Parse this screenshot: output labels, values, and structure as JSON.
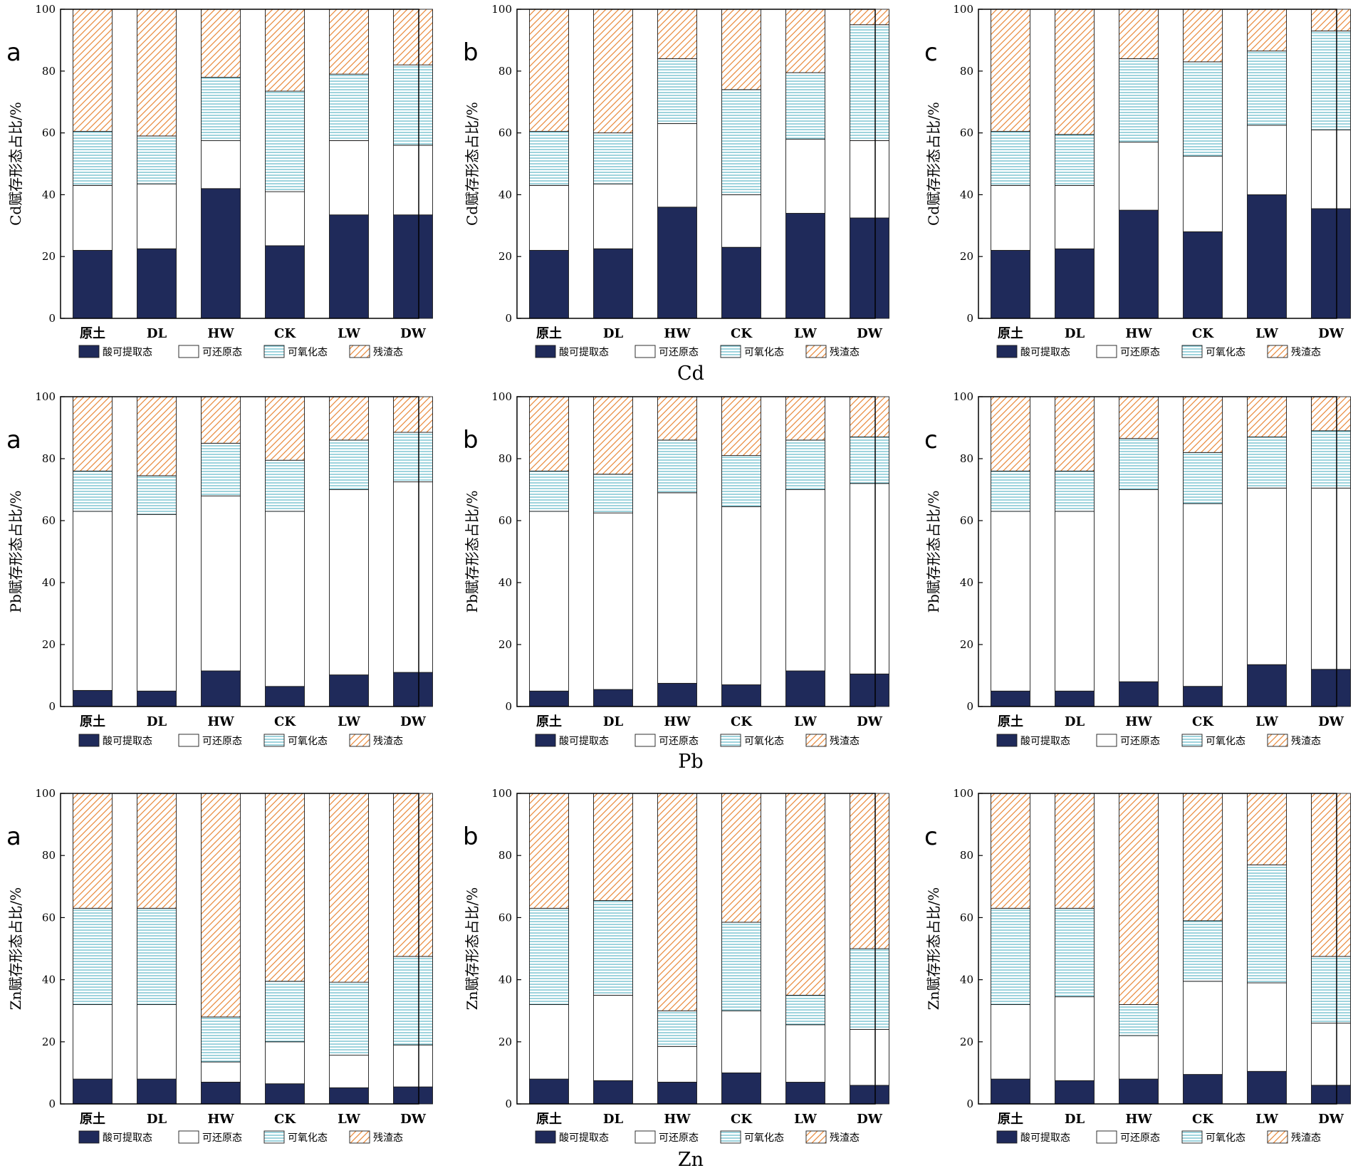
{
  "chart_data": {
    "type": "bar",
    "layout": "3x3 grid of stacked bar charts; each group of three panels followed by a centered element caption",
    "groups": [
      {
        "element": "Cd",
        "panels": [
          {
            "letter": "a",
            "ylabel": "Cd赋存形态占比/%",
            "categories": [
              "原土",
              "DL",
              "HW",
              "CK",
              "LW",
              "DW"
            ],
            "ylim": [
              0,
              100
            ],
            "yticks": [
              "0",
              "20",
              "40",
              "60",
              "80",
              "100"
            ],
            "series": [
              {
                "name": "酸可提取态",
                "values": [
                  22,
                  22.5,
                  42,
                  23.5,
                  33.5,
                  33.5
                ]
              },
              {
                "name": "可还原态",
                "values": [
                  21,
                  21,
                  15.5,
                  17.5,
                  24,
                  22.5
                ]
              },
              {
                "name": "可氧化态",
                "values": [
                  17.5,
                  15.5,
                  20.5,
                  32.5,
                  21.5,
                  26
                ]
              },
              {
                "name": "残渣态",
                "values": [
                  39.5,
                  41,
                  22,
                  26.5,
                  21,
                  18
                ]
              }
            ]
          },
          {
            "letter": "b",
            "ylabel": "Cd赋存形态占比/%",
            "categories": [
              "原土",
              "DL",
              "HW",
              "CK",
              "LW",
              "DW"
            ],
            "ylim": [
              0,
              100
            ],
            "yticks": [
              "0",
              "20",
              "40",
              "60",
              "80",
              "100"
            ],
            "series": [
              {
                "name": "酸可提取态",
                "values": [
                  22,
                  22.5,
                  36,
                  23,
                  34,
                  32.5
                ]
              },
              {
                "name": "可还原态",
                "values": [
                  21,
                  21,
                  27,
                  17,
                  24,
                  25
                ]
              },
              {
                "name": "可氧化态",
                "values": [
                  17.5,
                  16.5,
                  21,
                  34,
                  21.5,
                  37.5
                ]
              },
              {
                "name": "残渣态",
                "values": [
                  39.5,
                  40,
                  16,
                  26,
                  20.5,
                  5
                ]
              }
            ]
          },
          {
            "letter": "c",
            "ylabel": "Cd赋存形态占比/%",
            "categories": [
              "原土",
              "DL",
              "HW",
              "CK",
              "LW",
              "DW"
            ],
            "ylim": [
              0,
              100
            ],
            "yticks": [
              "0",
              "20",
              "40",
              "60",
              "80",
              "100"
            ],
            "series": [
              {
                "name": "酸可提取态",
                "values": [
                  22,
                  22.5,
                  35,
                  28,
                  40,
                  35.5
                ]
              },
              {
                "name": "可还原态",
                "values": [
                  21,
                  20.5,
                  22,
                  24.5,
                  22.5,
                  25.5
                ]
              },
              {
                "name": "可氧化态",
                "values": [
                  17.5,
                  16.5,
                  27,
                  30.5,
                  24,
                  32
                ]
              },
              {
                "name": "残渣态",
                "values": [
                  39.5,
                  40.5,
                  16,
                  17,
                  13.5,
                  7
                ]
              }
            ]
          }
        ]
      },
      {
        "element": "Pb",
        "panels": [
          {
            "letter": "a",
            "ylabel": "Pb赋存形态占比/%",
            "categories": [
              "原土",
              "DL",
              "HW",
              "CK",
              "LW",
              "DW"
            ],
            "ylim": [
              0,
              100
            ],
            "yticks": [
              "0",
              "20",
              "40",
              "60",
              "80",
              "100"
            ],
            "series": [
              {
                "name": "酸可提取态",
                "values": [
                  5.2,
                  5,
                  11.5,
                  6.5,
                  10.2,
                  11
                ]
              },
              {
                "name": "可还原态",
                "values": [
                  57.8,
                  57,
                  56.5,
                  56.5,
                  59.8,
                  61.5
                ]
              },
              {
                "name": "可氧化态",
                "values": [
                  13,
                  12.5,
                  17,
                  16.5,
                  16,
                  16
                ]
              },
              {
                "name": "残渣态",
                "values": [
                  24,
                  25.5,
                  15,
                  20.5,
                  14,
                  11.5
                ]
              }
            ]
          },
          {
            "letter": "b",
            "ylabel": "Pb赋存形态占比/%",
            "categories": [
              "原土",
              "DL",
              "HW",
              "CK",
              "LW",
              "DW"
            ],
            "ylim": [
              0,
              100
            ],
            "yticks": [
              "0",
              "20",
              "40",
              "60",
              "80",
              "100"
            ],
            "series": [
              {
                "name": "酸可提取态",
                "values": [
                  5,
                  5.5,
                  7.5,
                  7,
                  11.5,
                  10.5
                ]
              },
              {
                "name": "可还原态",
                "values": [
                  58,
                  57,
                  61.5,
                  57.5,
                  58.5,
                  61.5
                ]
              },
              {
                "name": "可氧化态",
                "values": [
                  13,
                  12.5,
                  17,
                  16.5,
                  16,
                  15
                ]
              },
              {
                "name": "残渣态",
                "values": [
                  24,
                  25,
                  14,
                  19,
                  14,
                  13
                ]
              }
            ]
          },
          {
            "letter": "c",
            "ylabel": "Pb赋存形态占比/%",
            "categories": [
              "原土",
              "DL",
              "HW",
              "CK",
              "LW",
              "DW"
            ],
            "ylim": [
              0,
              100
            ],
            "yticks": [
              "0",
              "20",
              "40",
              "60",
              "80",
              "100"
            ],
            "series": [
              {
                "name": "酸可提取态",
                "values": [
                  5,
                  5,
                  8,
                  6.5,
                  13.5,
                  12
                ]
              },
              {
                "name": "可还原态",
                "values": [
                  58,
                  58,
                  62,
                  59,
                  57,
                  58.5
                ]
              },
              {
                "name": "可氧化态",
                "values": [
                  13,
                  13,
                  16.5,
                  16.5,
                  16.5,
                  18.5
                ]
              },
              {
                "name": "残渣态",
                "values": [
                  24,
                  24,
                  13.5,
                  18,
                  13,
                  11
                ]
              }
            ]
          }
        ]
      },
      {
        "element": "Zn",
        "panels": [
          {
            "letter": "a",
            "ylabel": "Zn赋存形态占比/%",
            "categories": [
              "原土",
              "DL",
              "HW",
              "CK",
              "LW",
              "DW"
            ],
            "ylim": [
              0,
              100
            ],
            "yticks": [
              "0",
              "20",
              "40",
              "60",
              "80",
              "100"
            ],
            "series": [
              {
                "name": "酸可提取态",
                "values": [
                  8,
                  8,
                  7,
                  6.5,
                  5.2,
                  5.5
                ]
              },
              {
                "name": "可还原态",
                "values": [
                  24,
                  24,
                  6.5,
                  13.5,
                  10.5,
                  13.5
                ]
              },
              {
                "name": "可氧化态",
                "values": [
                  31,
                  31,
                  14.5,
                  19.5,
                  23.5,
                  28.5
                ]
              },
              {
                "name": "残渣态",
                "values": [
                  37,
                  37,
                  72,
                  60.5,
                  60.8,
                  52.5
                ]
              }
            ]
          },
          {
            "letter": "b",
            "ylabel": "Zn赋存形态占比/%",
            "categories": [
              "原土",
              "DL",
              "HW",
              "CK",
              "LW",
              "DW"
            ],
            "ylim": [
              0,
              100
            ],
            "yticks": [
              "0",
              "20",
              "40",
              "60",
              "80",
              "100"
            ],
            "series": [
              {
                "name": "酸可提取态",
                "values": [
                  8,
                  7.5,
                  7,
                  10,
                  7,
                  6
                ]
              },
              {
                "name": "可还原态",
                "values": [
                  24,
                  27.5,
                  11.5,
                  20,
                  18.5,
                  18
                ]
              },
              {
                "name": "可氧化态",
                "values": [
                  31,
                  30.5,
                  11.5,
                  28.5,
                  9.5,
                  26
                ]
              },
              {
                "name": "残渣态",
                "values": [
                  37,
                  34.5,
                  70,
                  41.5,
                  65,
                  50
                ]
              }
            ]
          },
          {
            "letter": "c",
            "ylabel": "Zn赋存形态占比/%",
            "categories": [
              "原土",
              "DL",
              "HW",
              "CK",
              "LW",
              "DW"
            ],
            "ylim": [
              0,
              100
            ],
            "yticks": [
              "0",
              "20",
              "40",
              "60",
              "80",
              "100"
            ],
            "series": [
              {
                "name": "酸可提取态",
                "values": [
                  8,
                  7.5,
                  8,
                  9.5,
                  10.5,
                  6
                ]
              },
              {
                "name": "可还原态",
                "values": [
                  24,
                  27,
                  14,
                  30,
                  28.5,
                  20
                ]
              },
              {
                "name": "可氧化态",
                "values": [
                  31,
                  28.5,
                  10,
                  19.5,
                  38,
                  21.5
                ]
              },
              {
                "name": "残渣态",
                "values": [
                  37,
                  37,
                  68,
                  41,
                  23,
                  52.5
                ]
              }
            ]
          }
        ]
      }
    ],
    "legend": {
      "placement": "bottom",
      "entries": [
        "酸可提取态",
        "可还原态",
        "可氧化态",
        "残渣态"
      ]
    },
    "series_styles": [
      {
        "name": "酸可提取态",
        "fill": "#1f2a5a",
        "pattern": "solid"
      },
      {
        "name": "可还原态",
        "fill": "#ffffff",
        "pattern": "none"
      },
      {
        "name": "可氧化态",
        "fill": "#ffffff",
        "pattern": "horizontal-lines",
        "line_color": "#5fb7c7"
      },
      {
        "name": "残渣态",
        "fill": "#ffffff",
        "pattern": "diagonal-lines",
        "line_color": "#e98a3c"
      }
    ]
  }
}
